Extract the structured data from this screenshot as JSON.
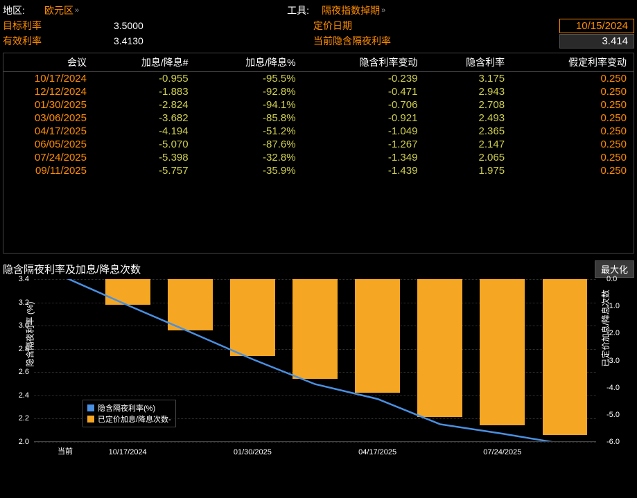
{
  "header": {
    "region_label": "地区:",
    "region_value": "欧元区",
    "tool_label": "工具:",
    "tool_value": "隔夜指数掉期",
    "target_rate_label": "目标利率",
    "target_rate_value": "3.5000",
    "pricing_date_label": "定价日期",
    "pricing_date_value": "10/15/2024",
    "effective_rate_label": "有效利率",
    "effective_rate_value": "3.4130",
    "implied_on_label": "当前隐含隔夜利率",
    "implied_on_value": "3.414"
  },
  "table": {
    "columns": [
      "会议",
      "加息/降息#",
      "加息/降息%",
      "隐含利率变动",
      "隐含利率",
      "假定利率变动"
    ],
    "rows": [
      [
        "10/17/2024",
        "-0.955",
        "-95.5%",
        "-0.239",
        "3.175",
        "0.250"
      ],
      [
        "12/12/2024",
        "-1.883",
        "-92.8%",
        "-0.471",
        "2.943",
        "0.250"
      ],
      [
        "01/30/2025",
        "-2.824",
        "-94.1%",
        "-0.706",
        "2.708",
        "0.250"
      ],
      [
        "03/06/2025",
        "-3.682",
        "-85.8%",
        "-0.921",
        "2.493",
        "0.250"
      ],
      [
        "04/17/2025",
        "-4.194",
        "-51.2%",
        "-1.049",
        "2.365",
        "0.250"
      ],
      [
        "06/05/2025",
        "-5.070",
        "-87.6%",
        "-1.267",
        "2.147",
        "0.250"
      ],
      [
        "07/24/2025",
        "-5.398",
        "-32.8%",
        "-1.349",
        "2.065",
        "0.250"
      ],
      [
        "09/11/2025",
        "-5.757",
        "-35.9%",
        "-1.439",
        "1.975",
        "0.250"
      ]
    ]
  },
  "chart": {
    "title": "隐含隔夜利率及加息/降息次数",
    "maximize_label": "最大化",
    "left_axis_label": "隐含隔夜利率 (%)",
    "right_axis_label": "已定价加息/降息次数",
    "left_ylim": [
      2.0,
      3.4
    ],
    "left_ticks": [
      2.0,
      2.2,
      2.4,
      2.6,
      2.8,
      3.0,
      3.2,
      3.4
    ],
    "right_ylim": [
      -6.0,
      0.0
    ],
    "right_ticks": [
      0.0,
      -1.0,
      -2.0,
      -3.0,
      -4.0,
      -5.0,
      -6.0
    ],
    "x_categories": [
      "当前",
      "10/17/2024",
      "12/12/2024",
      "01/30/2025",
      "03/06/2025",
      "04/17/2025",
      "06/05/2025",
      "07/24/2025",
      "09/11/2025"
    ],
    "x_display": [
      "当前",
      "10/17/2024",
      "01/30/2025",
      "04/17/2025",
      "07/24/2025"
    ],
    "line_values": [
      3.414,
      3.175,
      2.943,
      2.708,
      2.493,
      2.365,
      2.147,
      2.065,
      1.975
    ],
    "bar_values": [
      null,
      -0.955,
      -1.883,
      -2.824,
      -3.682,
      -4.194,
      -5.07,
      -5.398,
      -5.757
    ],
    "line_color": "#4a90e2",
    "bar_color": "#f5a623",
    "background_color": "#000000",
    "grid_color": "#333333",
    "legend": {
      "line_label": "隐含隔夜利率(%)",
      "bar_label": "已定价加息/降息次数-"
    },
    "bar_width_ratio": 0.72
  }
}
